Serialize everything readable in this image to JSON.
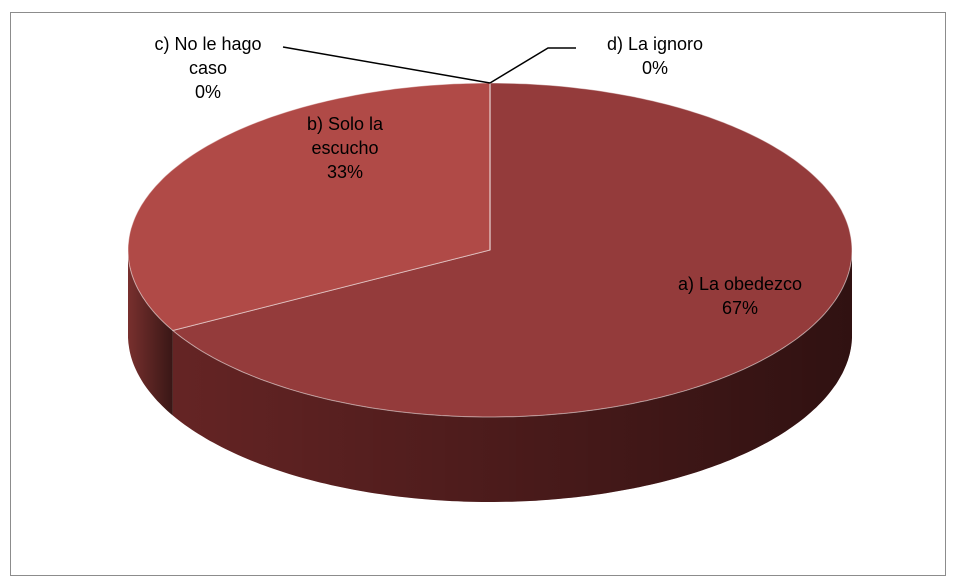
{
  "chart_data": {
    "type": "pie",
    "categories": [
      "a) La obedezco",
      "b) Solo la escucho",
      "c) No le hago caso",
      "d) La ignoro"
    ],
    "values": [
      67,
      33,
      0,
      0
    ],
    "value_labels": [
      "67%",
      "33%",
      "0%",
      "0%"
    ],
    "colors": [
      "#943b3b",
      "#b04a47",
      "#c05a56",
      "#c86a66"
    ],
    "side_colors": [
      "#6a2626",
      "#7e3230",
      "#8a3a38",
      "#904040"
    ]
  }
}
